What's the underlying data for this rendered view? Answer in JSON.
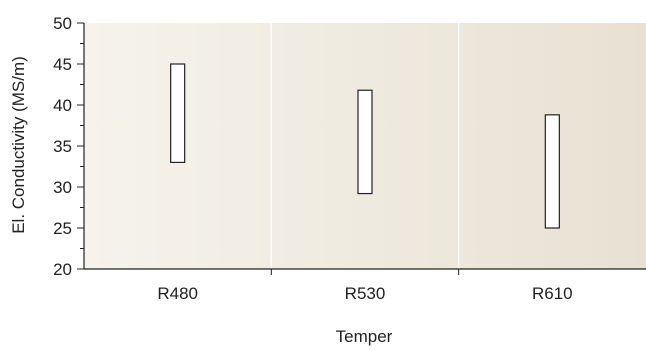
{
  "chart_data": {
    "type": "range-bar",
    "xlabel": "Temper",
    "ylabel": "El. Conductivity (MS/m)",
    "ylim": [
      20,
      50
    ],
    "y_major_ticks": [
      20,
      25,
      30,
      35,
      40,
      45,
      50
    ],
    "y_minor_step": 2.5,
    "categories": [
      "R480",
      "R530",
      "R610"
    ],
    "ranges": [
      {
        "category": "R480",
        "low": 33,
        "high": 45
      },
      {
        "category": "R530",
        "low": 29.2,
        "high": 41.8
      },
      {
        "category": "R610",
        "low": 25,
        "high": 38.8
      }
    ],
    "grid": "vertical",
    "colors": {
      "plot_bg_left": "#f6f3ec",
      "plot_bg_right": "#e8e1d3",
      "bar_fill": "#ffffff",
      "bar_stroke": "#222222",
      "axis": "#222222",
      "grid": "#ffffff"
    }
  }
}
